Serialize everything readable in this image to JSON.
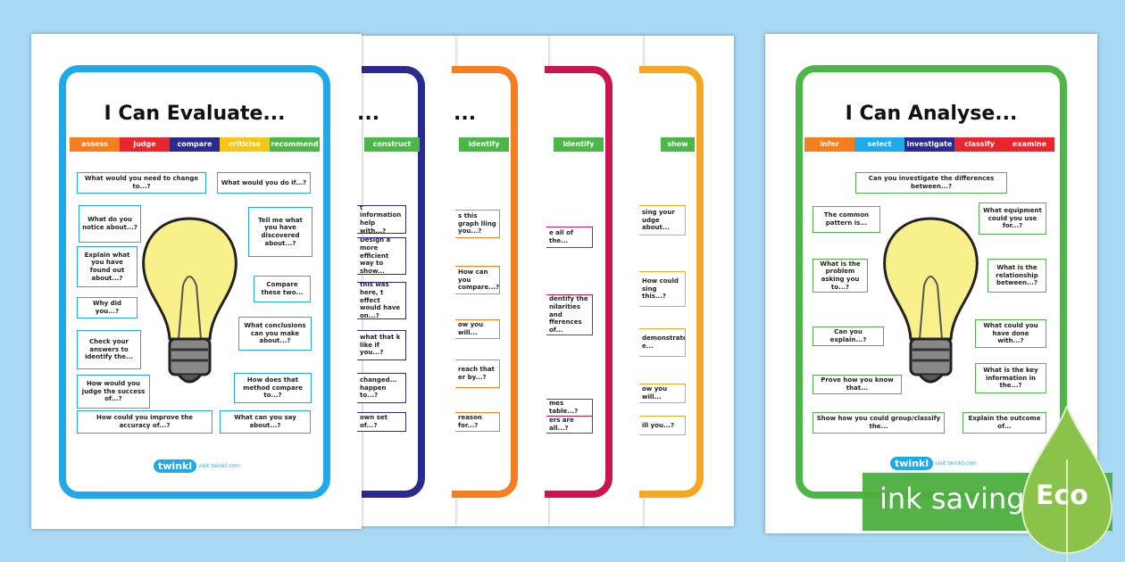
{
  "posters": [
    {
      "title": "I Can Evaluate...",
      "tags": [
        "assess",
        "judge",
        "compare",
        "criticise",
        "recommend"
      ],
      "questions": [
        "What would you need to change to...?",
        "What would you do if...?",
        "What do you notice about...?",
        "Tell me what you have discovered about...?",
        "Explain what you have found out about...?",
        "Compare these two...",
        "Why did you...?",
        "What conclusions can you make about...?",
        "Check your answers to identify the...",
        "How does that method compare to...?",
        "How would you judge the success of...?",
        "How could you improve the accuracy of...?",
        "What can you say about...?"
      ],
      "logo": "twinkl",
      "url": "visit twinkl.com"
    },
    {
      "title": "I Can Analyse...",
      "tags": [
        "infer",
        "select",
        "investigate",
        "classify",
        "examine"
      ],
      "questions": [
        "Can you investigate the differences between...?",
        "The common pattern is...",
        "What equipment could you use for...?",
        "What is the problem asking you to...?",
        "What is the relationship between...?",
        "Can you explain...?",
        "What could you have done with...?",
        "What is the key information in the...?",
        "Prove how you know that...",
        "Show how you could group/classify the...",
        "Explain the outcome of..."
      ],
      "logo": "twinkl",
      "url": "visit twinkl.com"
    }
  ],
  "sheets": [
    {
      "title_fragment": "...",
      "tag": "construct",
      "questions": [
        "t information help with...?",
        "Design a more efficient way to show...",
        "this was here, t effect would have on...?",
        "what that k like if you...?",
        "changed... happen to...?",
        "own set of...?"
      ]
    },
    {
      "title_fragment": "...",
      "tag": "identify",
      "questions": [
        "s this graph lling you...?",
        "How can you compare...?",
        "ow you will...",
        "reach that er by...?",
        "reason for...?"
      ]
    },
    {
      "tag": "identify",
      "questions": [
        "e all of the...",
        "dentify the nilarities and fferences of...",
        "mes table...?",
        "ers are all...?"
      ]
    },
    {
      "tag": "show",
      "questions": [
        "sing your udge about...",
        "How could sing this...?",
        "demonstrate e...",
        "ow you will...",
        "ill you...?"
      ]
    }
  ],
  "badge": {
    "text": "ink saving",
    "label": "Eco"
  }
}
